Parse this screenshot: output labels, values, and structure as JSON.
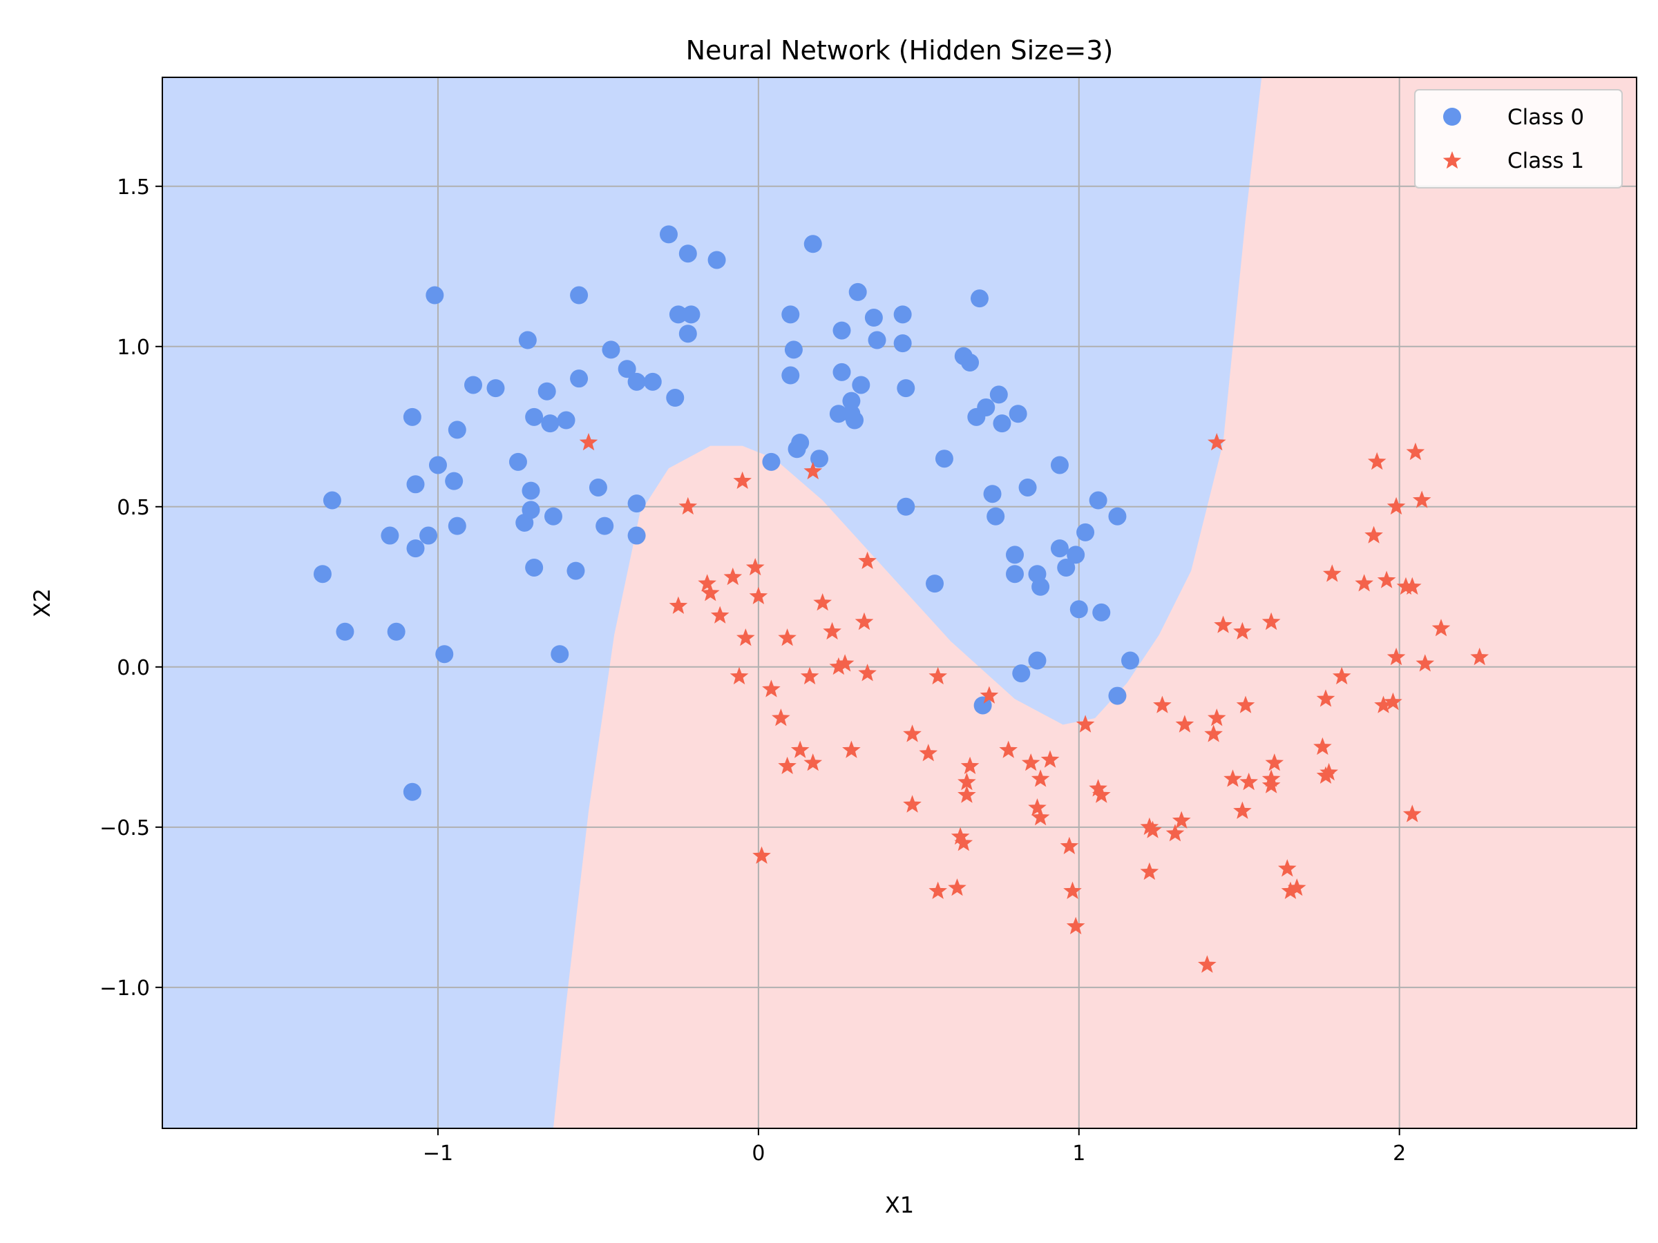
{
  "colors": {
    "class0": "#6495ed",
    "class1": "#f4624b",
    "region0": "#c6d8fd",
    "region1": "#fddcdc",
    "grid": "#b0b0b0"
  },
  "chart_data": {
    "type": "scatter",
    "title": "Neural Network (Hidden Size=3)",
    "xlabel": "X1",
    "ylabel": "X2",
    "xlim": [
      -1.86,
      2.74
    ],
    "ylim": [
      -1.44,
      1.84
    ],
    "xticks": [
      -1,
      0,
      1,
      2
    ],
    "yticks": [
      -1.0,
      -0.5,
      0.0,
      0.5,
      1.0,
      1.5
    ],
    "xtick_labels": [
      "−1",
      "0",
      "1",
      "2"
    ],
    "ytick_labels": [
      "−1.0",
      "−0.5",
      "0.0",
      "0.5",
      "1.0",
      "1.5"
    ],
    "grid": true,
    "legend_position": "top-right",
    "decision_boundary": [
      [
        -0.64,
        -1.44
      ],
      [
        -0.6,
        -1.05
      ],
      [
        -0.53,
        -0.45
      ],
      [
        -0.45,
        0.1
      ],
      [
        -0.37,
        0.48
      ],
      [
        -0.28,
        0.62
      ],
      [
        -0.15,
        0.69
      ],
      [
        -0.05,
        0.69
      ],
      [
        0.05,
        0.65
      ],
      [
        0.2,
        0.52
      ],
      [
        0.4,
        0.3
      ],
      [
        0.6,
        0.08
      ],
      [
        0.8,
        -0.1
      ],
      [
        0.95,
        -0.18
      ],
      [
        1.05,
        -0.16
      ],
      [
        1.15,
        -0.05
      ],
      [
        1.25,
        0.1
      ],
      [
        1.35,
        0.3
      ],
      [
        1.45,
        0.7
      ],
      [
        1.52,
        1.4
      ],
      [
        1.57,
        1.84
      ]
    ],
    "series": [
      {
        "name": "Class 0",
        "marker": "circle",
        "points": [
          [
            -1.36,
            0.29
          ],
          [
            -1.33,
            0.52
          ],
          [
            -1.29,
            0.11
          ],
          [
            -1.15,
            0.41
          ],
          [
            -1.13,
            0.11
          ],
          [
            -1.08,
            0.78
          ],
          [
            -1.07,
            0.57
          ],
          [
            -1.07,
            0.37
          ],
          [
            -1.08,
            -0.39
          ],
          [
            -1.03,
            0.41
          ],
          [
            -1.01,
            1.16
          ],
          [
            -1.0,
            0.63
          ],
          [
            -0.98,
            0.04
          ],
          [
            -0.95,
            0.58
          ],
          [
            -0.94,
            0.74
          ],
          [
            -0.94,
            0.44
          ],
          [
            -0.89,
            0.88
          ],
          [
            -0.82,
            0.87
          ],
          [
            -0.75,
            0.64
          ],
          [
            -0.73,
            0.45
          ],
          [
            -0.72,
            1.02
          ],
          [
            -0.71,
            0.55
          ],
          [
            -0.71,
            0.49
          ],
          [
            -0.7,
            0.31
          ],
          [
            -0.7,
            0.78
          ],
          [
            -0.66,
            0.86
          ],
          [
            -0.65,
            0.76
          ],
          [
            -0.64,
            0.47
          ],
          [
            -0.62,
            0.04
          ],
          [
            -0.6,
            0.77
          ],
          [
            -0.57,
            0.3
          ],
          [
            -0.56,
            0.9
          ],
          [
            -0.56,
            1.16
          ],
          [
            -0.5,
            0.56
          ],
          [
            -0.48,
            0.44
          ],
          [
            -0.46,
            0.99
          ],
          [
            -0.41,
            0.93
          ],
          [
            -0.38,
            0.41
          ],
          [
            -0.38,
            0.51
          ],
          [
            -0.38,
            0.89
          ],
          [
            -0.33,
            0.89
          ],
          [
            -0.28,
            1.35
          ],
          [
            -0.26,
            0.84
          ],
          [
            -0.25,
            1.1
          ],
          [
            -0.22,
            1.29
          ],
          [
            -0.22,
            1.04
          ],
          [
            -0.21,
            1.1
          ],
          [
            -0.13,
            1.27
          ],
          [
            0.04,
            0.64
          ],
          [
            0.1,
            1.1
          ],
          [
            0.1,
            0.91
          ],
          [
            0.11,
            0.99
          ],
          [
            0.12,
            0.68
          ],
          [
            0.13,
            0.7
          ],
          [
            0.17,
            1.32
          ],
          [
            0.19,
            0.65
          ],
          [
            0.25,
            0.79
          ],
          [
            0.26,
            1.05
          ],
          [
            0.26,
            0.92
          ],
          [
            0.29,
            0.79
          ],
          [
            0.29,
            0.83
          ],
          [
            0.3,
            0.77
          ],
          [
            0.31,
            1.17
          ],
          [
            0.32,
            0.88
          ],
          [
            0.36,
            1.09
          ],
          [
            0.37,
            1.02
          ],
          [
            0.45,
            1.1
          ],
          [
            0.45,
            1.01
          ],
          [
            0.46,
            0.87
          ],
          [
            0.46,
            0.5
          ],
          [
            0.55,
            0.26
          ],
          [
            0.58,
            0.65
          ],
          [
            0.64,
            0.97
          ],
          [
            0.66,
            0.95
          ],
          [
            0.68,
            0.78
          ],
          [
            0.69,
            1.15
          ],
          [
            0.7,
            -0.12
          ],
          [
            0.71,
            0.81
          ],
          [
            0.73,
            0.54
          ],
          [
            0.74,
            0.47
          ],
          [
            0.75,
            0.85
          ],
          [
            0.76,
            0.76
          ],
          [
            0.8,
            0.35
          ],
          [
            0.8,
            0.29
          ],
          [
            0.81,
            0.79
          ],
          [
            0.82,
            -0.02
          ],
          [
            0.84,
            0.56
          ],
          [
            0.87,
            0.29
          ],
          [
            0.87,
            0.02
          ],
          [
            0.88,
            0.25
          ],
          [
            0.94,
            0.37
          ],
          [
            0.94,
            0.63
          ],
          [
            0.96,
            0.31
          ],
          [
            0.99,
            0.35
          ],
          [
            1.0,
            0.18
          ],
          [
            1.02,
            0.42
          ],
          [
            1.06,
            0.52
          ],
          [
            1.07,
            0.17
          ],
          [
            1.12,
            0.47
          ],
          [
            1.12,
            -0.09
          ],
          [
            1.16,
            0.02
          ]
        ]
      },
      {
        "name": "Class 1",
        "marker": "star",
        "points": [
          [
            -0.53,
            0.7
          ],
          [
            -0.25,
            0.19
          ],
          [
            -0.22,
            0.5
          ],
          [
            -0.16,
            0.26
          ],
          [
            -0.15,
            0.23
          ],
          [
            -0.12,
            0.16
          ],
          [
            -0.08,
            0.28
          ],
          [
            -0.06,
            -0.03
          ],
          [
            -0.05,
            0.58
          ],
          [
            -0.04,
            0.09
          ],
          [
            -0.01,
            0.31
          ],
          [
            0.0,
            0.22
          ],
          [
            0.01,
            -0.59
          ],
          [
            0.04,
            -0.07
          ],
          [
            0.07,
            -0.16
          ],
          [
            0.09,
            -0.31
          ],
          [
            0.09,
            0.09
          ],
          [
            0.13,
            -0.26
          ],
          [
            0.16,
            -0.03
          ],
          [
            0.17,
            -0.3
          ],
          [
            0.17,
            0.61
          ],
          [
            0.2,
            0.2
          ],
          [
            0.23,
            0.11
          ],
          [
            0.25,
            0.0
          ],
          [
            0.27,
            0.01
          ],
          [
            0.29,
            -0.26
          ],
          [
            0.33,
            0.14
          ],
          [
            0.34,
            0.33
          ],
          [
            0.34,
            -0.02
          ],
          [
            0.48,
            -0.21
          ],
          [
            0.48,
            -0.43
          ],
          [
            0.53,
            -0.27
          ],
          [
            0.56,
            -0.7
          ],
          [
            0.56,
            -0.03
          ],
          [
            0.62,
            -0.69
          ],
          [
            0.63,
            -0.53
          ],
          [
            0.64,
            -0.55
          ],
          [
            0.65,
            -0.36
          ],
          [
            0.65,
            -0.4
          ],
          [
            0.66,
            -0.31
          ],
          [
            0.72,
            -0.09
          ],
          [
            0.78,
            -0.26
          ],
          [
            0.85,
            -0.3
          ],
          [
            0.87,
            -0.44
          ],
          [
            0.88,
            -0.47
          ],
          [
            0.88,
            -0.35
          ],
          [
            0.91,
            -0.29
          ],
          [
            0.97,
            -0.56
          ],
          [
            0.98,
            -0.7
          ],
          [
            0.99,
            -0.81
          ],
          [
            1.02,
            -0.18
          ],
          [
            1.06,
            -0.38
          ],
          [
            1.07,
            -0.4
          ],
          [
            1.22,
            -0.5
          ],
          [
            1.22,
            -0.64
          ],
          [
            1.23,
            -0.51
          ],
          [
            1.26,
            -0.12
          ],
          [
            1.3,
            -0.52
          ],
          [
            1.32,
            -0.48
          ],
          [
            1.33,
            -0.18
          ],
          [
            1.4,
            -0.93
          ],
          [
            1.42,
            -0.21
          ],
          [
            1.43,
            -0.16
          ],
          [
            1.43,
            0.7
          ],
          [
            1.45,
            0.13
          ],
          [
            1.48,
            -0.35
          ],
          [
            1.51,
            0.11
          ],
          [
            1.51,
            -0.45
          ],
          [
            1.52,
            -0.12
          ],
          [
            1.53,
            -0.36
          ],
          [
            1.6,
            0.14
          ],
          [
            1.6,
            -0.37
          ],
          [
            1.6,
            -0.35
          ],
          [
            1.61,
            -0.3
          ],
          [
            1.65,
            -0.63
          ],
          [
            1.66,
            -0.7
          ],
          [
            1.68,
            -0.69
          ],
          [
            1.76,
            -0.25
          ],
          [
            1.77,
            -0.34
          ],
          [
            1.77,
            -0.1
          ],
          [
            1.78,
            -0.33
          ],
          [
            1.79,
            0.29
          ],
          [
            1.82,
            -0.03
          ],
          [
            1.89,
            0.26
          ],
          [
            1.92,
            0.41
          ],
          [
            1.93,
            0.64
          ],
          [
            1.95,
            -0.12
          ],
          [
            1.96,
            0.27
          ],
          [
            1.98,
            -0.11
          ],
          [
            1.99,
            0.03
          ],
          [
            1.99,
            0.5
          ],
          [
            2.02,
            0.25
          ],
          [
            2.04,
            0.25
          ],
          [
            2.04,
            -0.46
          ],
          [
            2.05,
            0.67
          ],
          [
            2.07,
            0.52
          ],
          [
            2.08,
            0.01
          ],
          [
            2.13,
            0.12
          ],
          [
            2.25,
            0.03
          ]
        ]
      }
    ]
  }
}
